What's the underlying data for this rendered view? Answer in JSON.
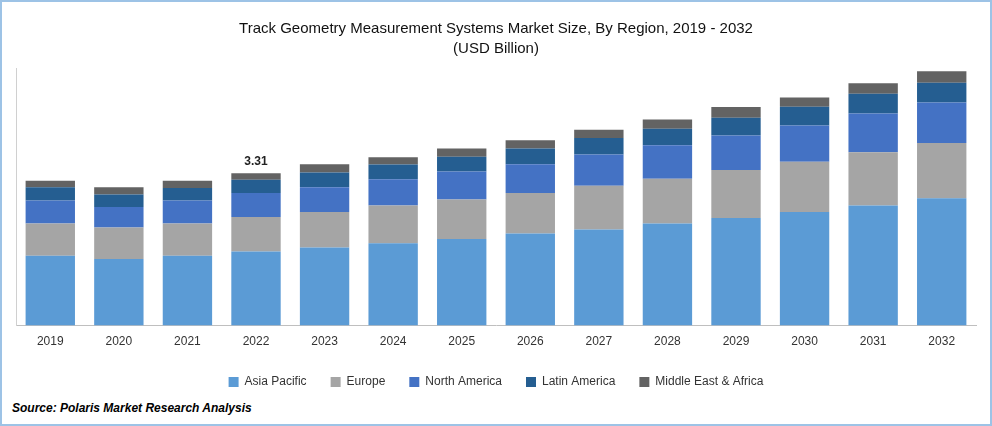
{
  "chart_data": {
    "type": "bar",
    "title": "Track Geometry Measurement Systems Market Size, By Region, 2019 - 2032",
    "subtitle": "(USD Billion)",
    "source": "Source: Polaris Market Research Analysis",
    "categories": [
      "2019",
      "2020",
      "2021",
      "2022",
      "2023",
      "2024",
      "2025",
      "2026",
      "2027",
      "2028",
      "2029",
      "2030",
      "2031",
      "2032"
    ],
    "series": [
      {
        "name": "Asia Pacific",
        "color": "#5b9bd5",
        "values": [
          1.52,
          1.45,
          1.52,
          1.61,
          1.7,
          1.79,
          1.88,
          2.0,
          2.09,
          2.22,
          2.34,
          2.47,
          2.61,
          2.77
        ]
      },
      {
        "name": "Europe",
        "color": "#a5a5a5",
        "values": [
          0.7,
          0.68,
          0.7,
          0.75,
          0.77,
          0.82,
          0.86,
          0.88,
          0.95,
          0.97,
          1.04,
          1.09,
          1.16,
          1.2
        ]
      },
      {
        "name": "North America",
        "color": "#4472c4",
        "values": [
          0.5,
          0.45,
          0.5,
          0.52,
          0.54,
          0.57,
          0.61,
          0.63,
          0.68,
          0.73,
          0.75,
          0.79,
          0.84,
          0.88
        ]
      },
      {
        "name": "Latin America",
        "color": "#255e91",
        "values": [
          0.29,
          0.27,
          0.27,
          0.29,
          0.32,
          0.32,
          0.32,
          0.34,
          0.36,
          0.36,
          0.39,
          0.41,
          0.43,
          0.43
        ]
      },
      {
        "name": "Middle East & Africa",
        "color": "#636363",
        "values": [
          0.14,
          0.16,
          0.16,
          0.14,
          0.18,
          0.16,
          0.18,
          0.18,
          0.18,
          0.2,
          0.23,
          0.2,
          0.23,
          0.25
        ]
      }
    ],
    "annotations": [
      {
        "category": "2022",
        "value": 3.31,
        "label": "3.31"
      }
    ],
    "ylim": [
      0,
      5.6
    ],
    "stacked": true,
    "grid": false,
    "legend": "bottom",
    "tick_labels": "x"
  }
}
